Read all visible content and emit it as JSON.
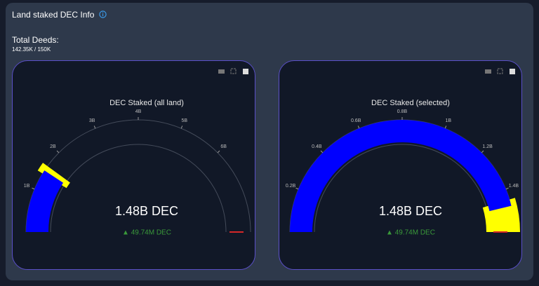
{
  "header": {
    "title": "Land staked DEC Info",
    "subtitle": "Total Deeds:",
    "deeds": "142.35K / 150K"
  },
  "chart_data": [
    {
      "type": "gauge",
      "title": "DEC Staked (all land)",
      "value": 1.48,
      "value_label": "1.48B DEC",
      "delta": 0.04974,
      "delta_label": "▲ 49.74M DEC",
      "ylim": [
        0,
        8
      ],
      "yticks": [
        {
          "value": 1,
          "label": "1B"
        },
        {
          "value": 2,
          "label": "2B"
        },
        {
          "value": 3,
          "label": "3B"
        },
        {
          "value": 4,
          "label": "4B"
        },
        {
          "value": 5,
          "label": "5B"
        },
        {
          "value": 6,
          "label": "6B"
        }
      ],
      "color": "#0000ff",
      "steps": [
        {
          "range": [
            1.4,
            1.6
          ],
          "color": "#ffff00"
        }
      ],
      "threshold": {
        "value": 8,
        "color": "#d62728"
      }
    },
    {
      "type": "gauge",
      "title": "DEC Staked (selected)",
      "value": 1.48,
      "value_label": "1.48B DEC",
      "delta": 0.04974,
      "delta_label": "▲ 49.74M DEC",
      "ylim": [
        0,
        1.6
      ],
      "yticks": [
        {
          "value": 0.2,
          "label": "0.2B"
        },
        {
          "value": 0.4,
          "label": "0.4B"
        },
        {
          "value": 0.6,
          "label": "0.6B"
        },
        {
          "value": 0.8,
          "label": "0.8B"
        },
        {
          "value": 1,
          "label": "1B"
        },
        {
          "value": 1.2,
          "label": "1.2B"
        },
        {
          "value": 1.4,
          "label": "1.4B"
        }
      ],
      "color": "#0000ff",
      "steps": [
        {
          "range": [
            1.45,
            1.6
          ],
          "color": "#ffff00"
        }
      ],
      "threshold": {
        "value": 1.6,
        "color": "#d62728"
      }
    }
  ]
}
